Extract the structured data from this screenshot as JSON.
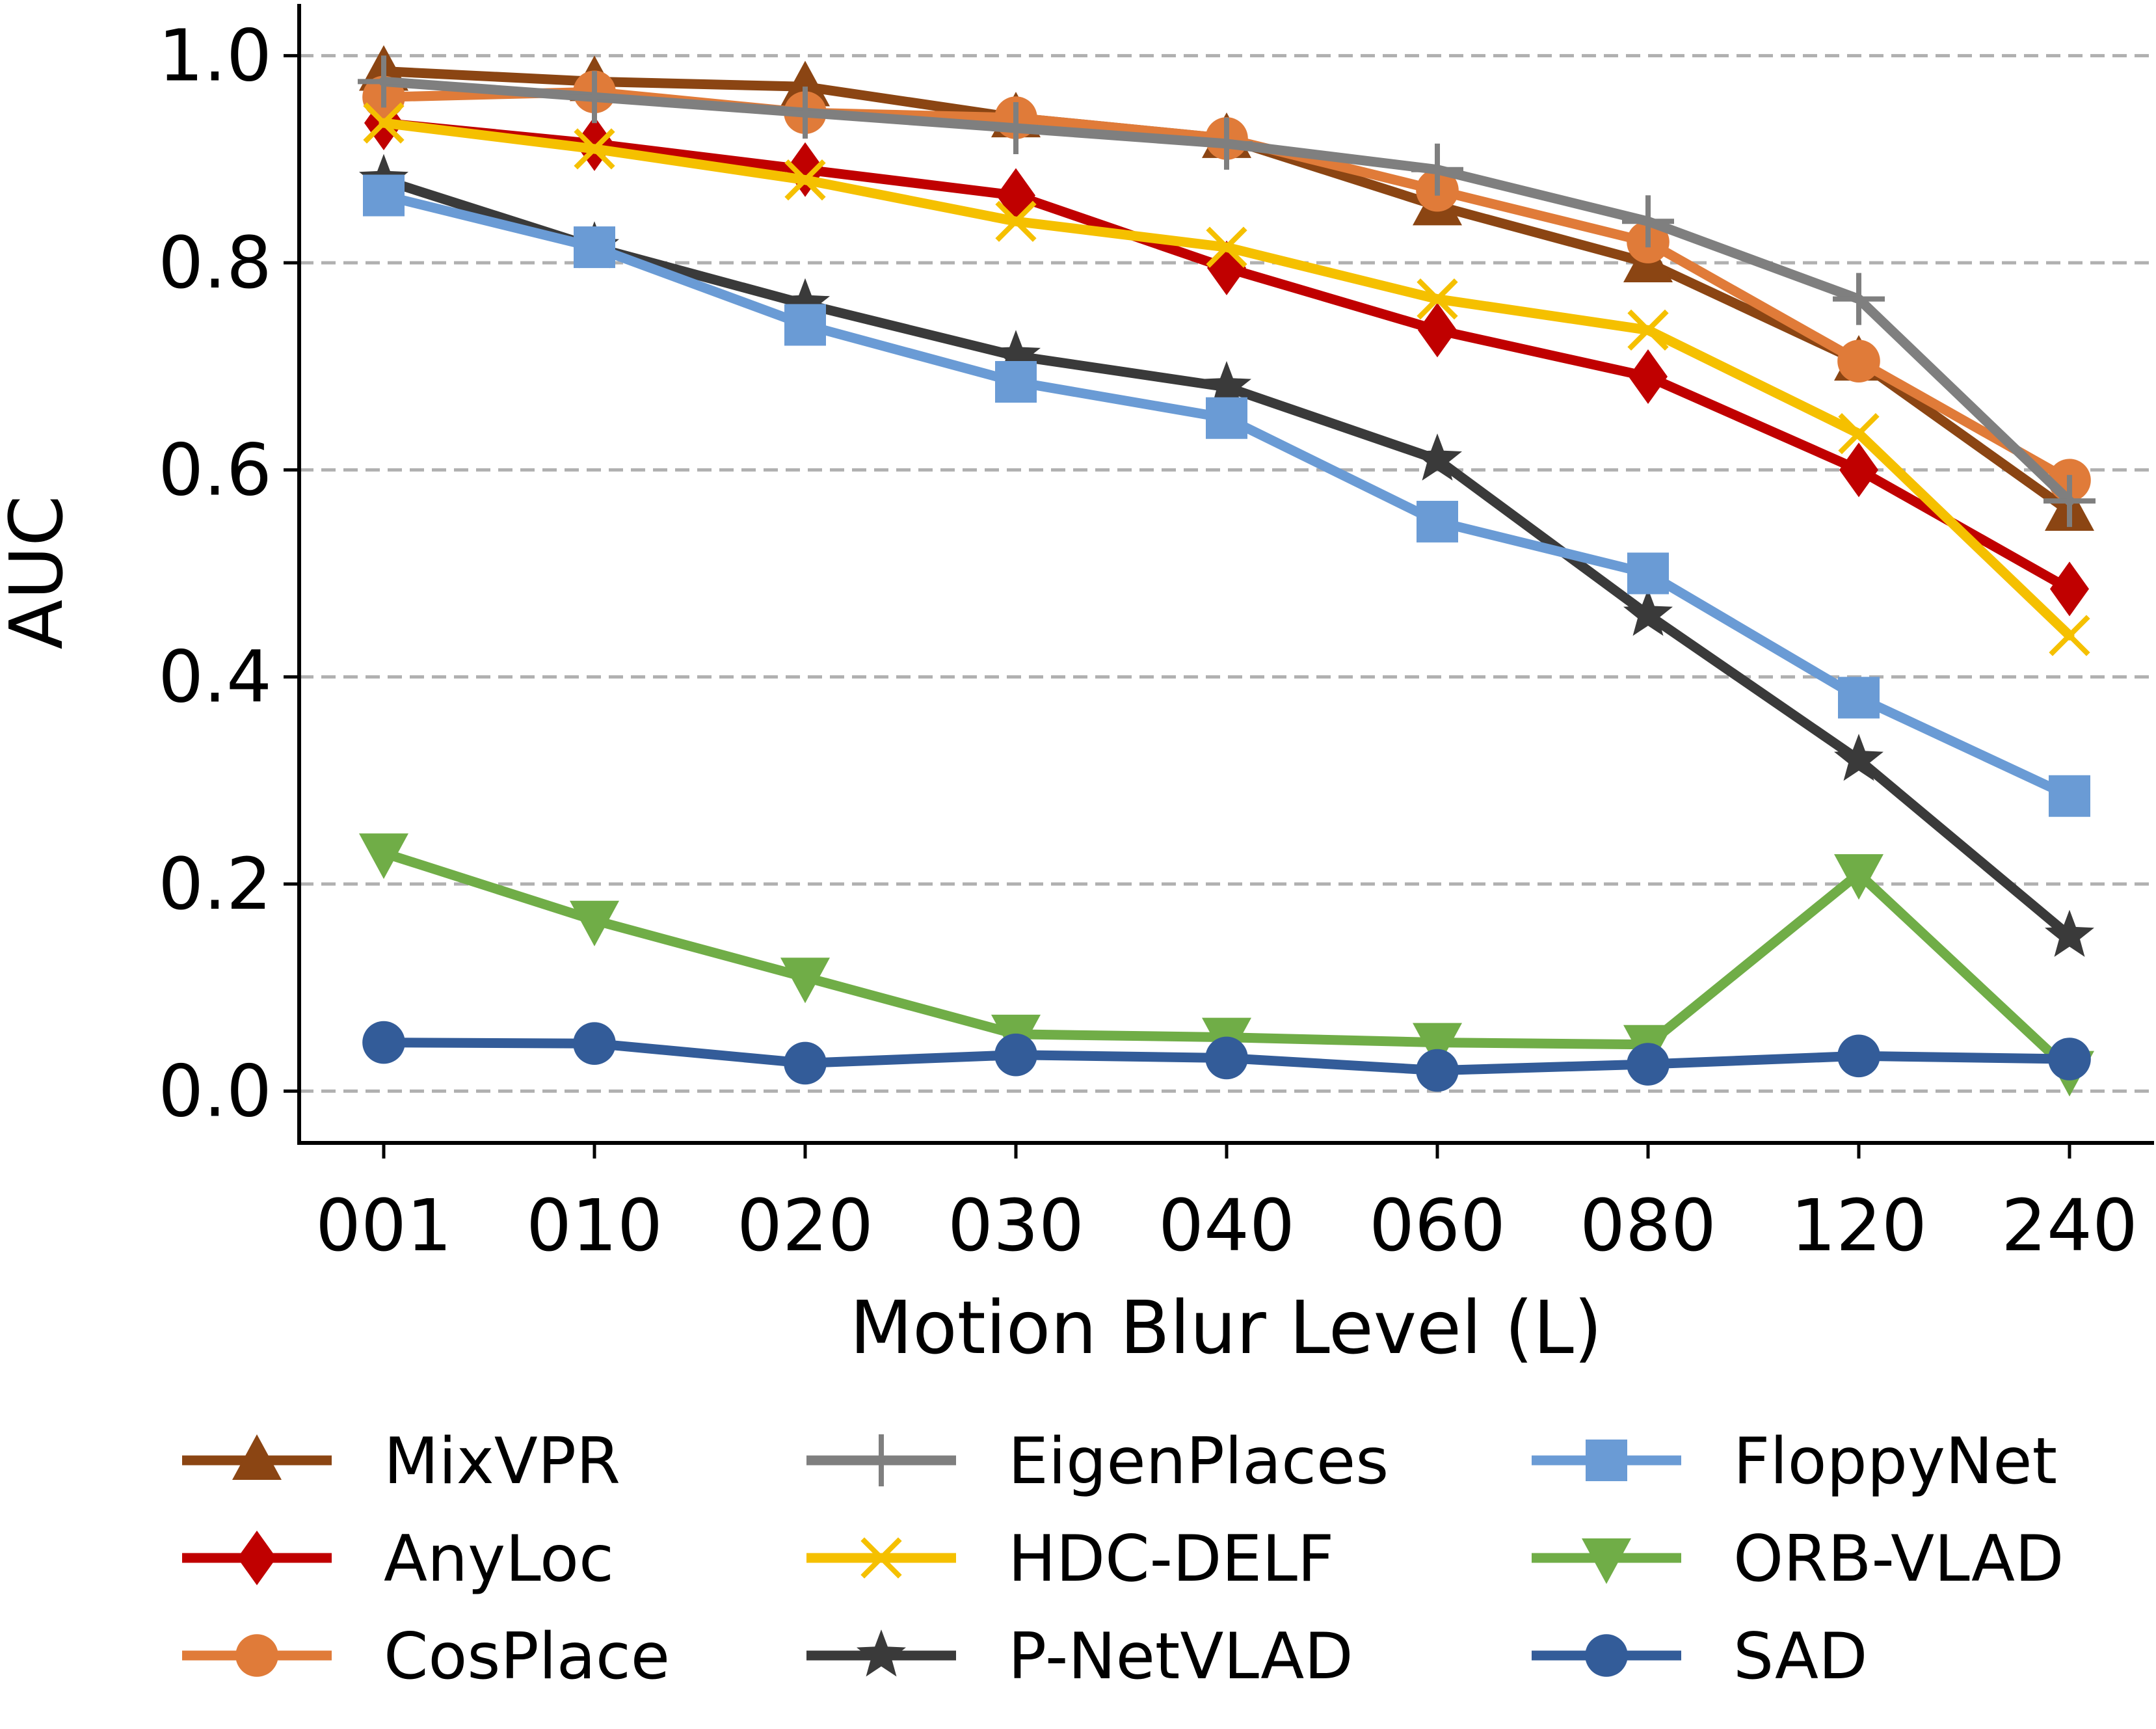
{
  "chart_data": {
    "type": "line",
    "title": "",
    "xlabel": "Motion Blur Level (L)",
    "ylabel": "AUC",
    "categories": [
      "001",
      "010",
      "020",
      "030",
      "040",
      "060",
      "080",
      "120",
      "240"
    ],
    "ylim": [
      -0.05,
      1.05
    ],
    "yticks": [
      "0.0",
      "0.2",
      "0.4",
      "0.6",
      "0.8",
      "1.0"
    ],
    "ytick_values": [
      0.0,
      0.2,
      0.4,
      0.6,
      0.8,
      1.0
    ],
    "grid": "horizontal dashed",
    "legend_position": "bottom",
    "series": [
      {
        "name": "MixVPR",
        "color": "#8B4513",
        "marker": "triangle-up",
        "values": [
          0.985,
          0.975,
          0.97,
          0.94,
          0.92,
          0.855,
          0.8,
          0.705,
          0.56
        ]
      },
      {
        "name": "AnyLoc",
        "color": "#C00000",
        "marker": "diamond",
        "values": [
          0.935,
          0.915,
          0.89,
          0.865,
          0.795,
          0.735,
          0.69,
          0.6,
          0.485
        ]
      },
      {
        "name": "CosPlace",
        "color": "#E07B39",
        "marker": "circle",
        "values": [
          0.96,
          0.965,
          0.945,
          0.94,
          0.92,
          0.87,
          0.82,
          0.705,
          0.59
        ]
      },
      {
        "name": "EigenPlaces",
        "color": "#7F7F7F",
        "marker": "plus",
        "values": [
          0.975,
          0.96,
          0.945,
          0.93,
          0.915,
          0.89,
          0.84,
          0.765,
          0.57
        ]
      },
      {
        "name": "HDC-DELF",
        "color": "#F5C000",
        "marker": "x",
        "values": [
          0.935,
          0.91,
          0.88,
          0.84,
          0.815,
          0.765,
          0.735,
          0.635,
          0.44
        ]
      },
      {
        "name": "P-NetVLAD",
        "color": "#3A3A3A",
        "marker": "star",
        "values": [
          0.88,
          0.815,
          0.76,
          0.71,
          0.68,
          0.61,
          0.46,
          0.32,
          0.15
        ]
      },
      {
        "name": "FloppyNet",
        "color": "#6A9BD5",
        "marker": "square",
        "values": [
          0.865,
          0.815,
          0.74,
          0.685,
          0.65,
          0.55,
          0.5,
          0.38,
          0.285
        ]
      },
      {
        "name": "ORB-VLAD",
        "color": "#70AD47",
        "marker": "triangle-down",
        "values": [
          0.23,
          0.165,
          0.11,
          0.055,
          0.052,
          0.047,
          0.045,
          0.21,
          0.02
        ]
      },
      {
        "name": "SAD",
        "color": "#335C99",
        "marker": "circle",
        "values": [
          0.047,
          0.046,
          0.027,
          0.035,
          0.032,
          0.02,
          0.026,
          0.034,
          0.031
        ]
      }
    ]
  }
}
